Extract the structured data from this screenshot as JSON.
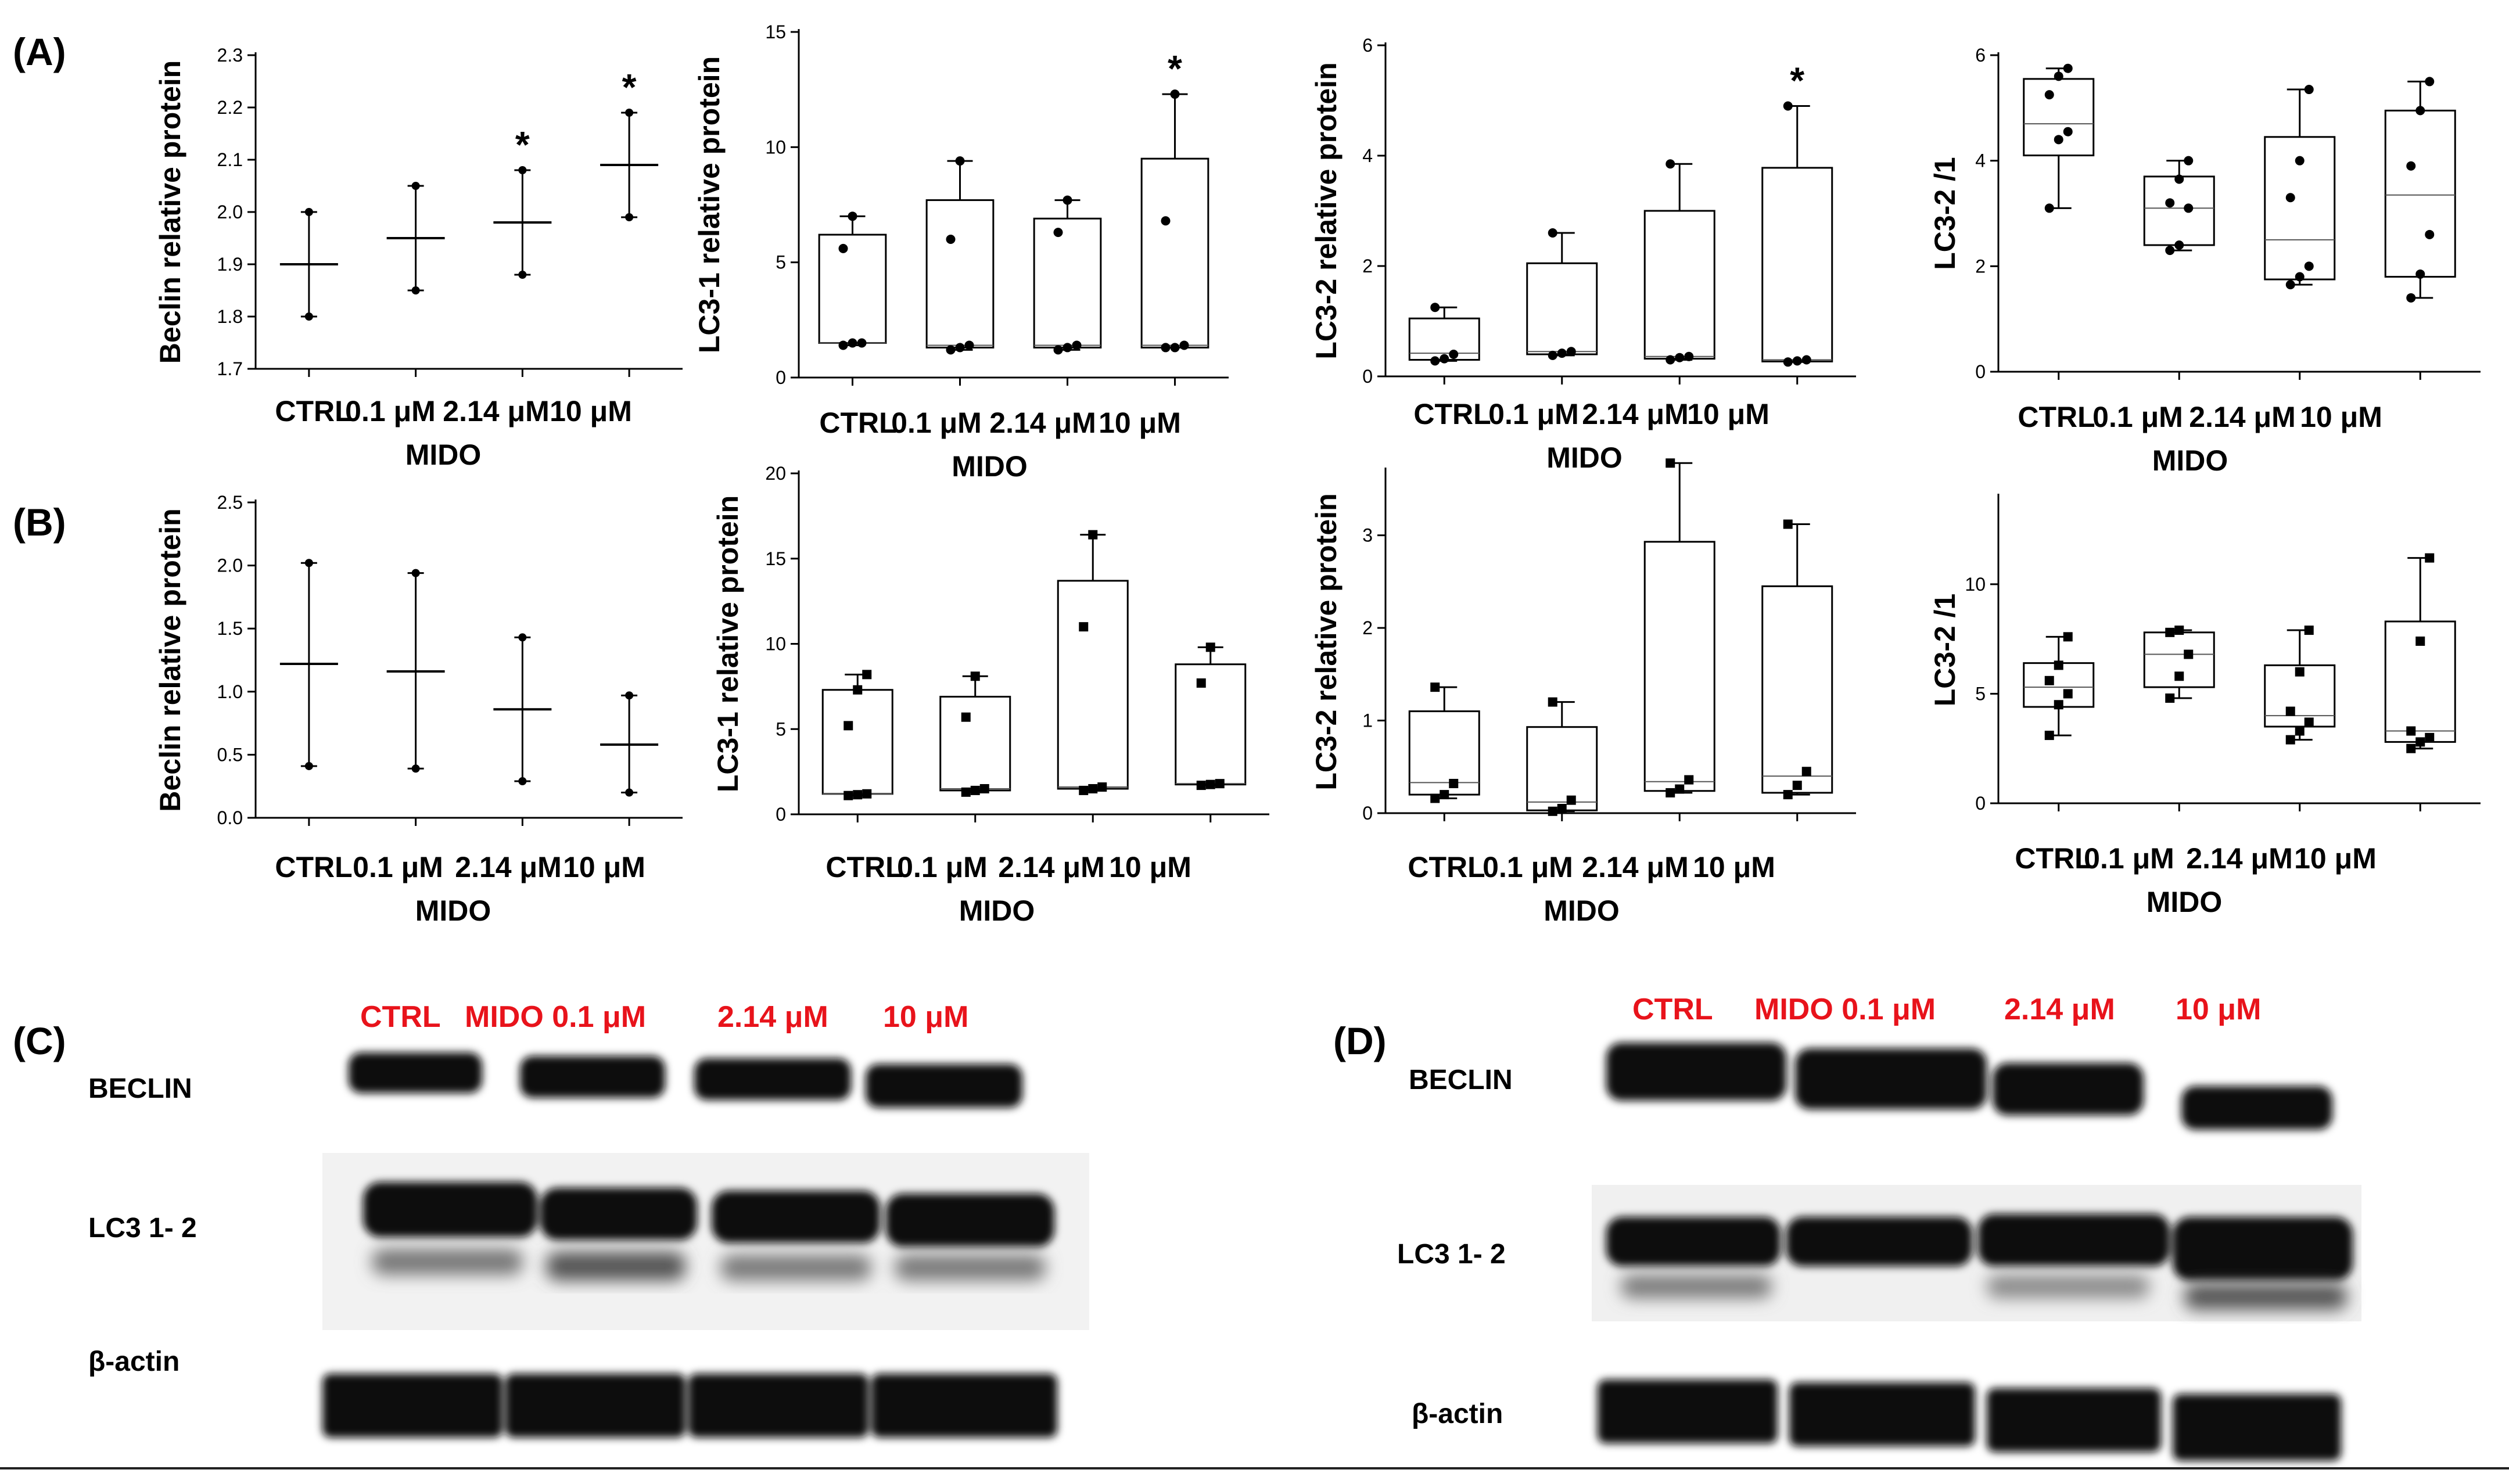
{
  "figure": {
    "footer_rule_color": "#222222",
    "blot_lane_color": "#e8131b",
    "band_color": "#0a0a0a"
  },
  "chart_data": [
    {
      "id": "A1",
      "panel_label": "(A)",
      "type": "errorbar",
      "ylabel": "Beclin relative protein",
      "xlabel": "MIDO",
      "categories": [
        "CTRL",
        "0.1 μM",
        "2.14 μM",
        "10 μM"
      ],
      "ylim": [
        1.7,
        2.3
      ],
      "yticks": [
        1.7,
        1.8,
        1.9,
        2.0,
        2.1,
        2.2,
        2.3
      ],
      "ytick_labels": [
        "1.7",
        "1.8",
        "1.9",
        "2.0",
        "2.1",
        "2.2",
        "2.3"
      ],
      "series": [
        {
          "mean": 1.9,
          "low": 1.8,
          "high": 2.0
        },
        {
          "mean": 1.95,
          "low": 1.85,
          "high": 2.05
        },
        {
          "mean": 1.98,
          "low": 1.88,
          "high": 2.08
        },
        {
          "mean": 2.09,
          "low": 1.99,
          "high": 2.19
        }
      ],
      "significance": [
        "",
        "",
        "*",
        "*"
      ]
    },
    {
      "id": "A2",
      "type": "box",
      "ylabel": "LC3-1 relative protein",
      "xlabel": "MIDO",
      "categories": [
        "CTRL",
        "0.1 μM",
        "2.14 μM",
        "10 μM"
      ],
      "ylim": [
        0,
        15
      ],
      "yticks": [
        0,
        5,
        10,
        15
      ],
      "ytick_labels": [
        "0",
        "5",
        "10",
        "15"
      ],
      "marker": "circle",
      "boxes": [
        {
          "min": 1.4,
          "q1": 1.5,
          "median": 1.5,
          "q3": 6.2,
          "max": 7.0,
          "points": [
            1.4,
            1.5,
            1.5,
            5.6,
            7.0
          ]
        },
        {
          "min": 1.2,
          "q1": 1.3,
          "median": 1.4,
          "q3": 7.7,
          "max": 9.4,
          "points": [
            1.2,
            1.3,
            1.4,
            6.0,
            9.4
          ]
        },
        {
          "min": 1.2,
          "q1": 1.3,
          "median": 1.4,
          "q3": 6.9,
          "max": 7.7,
          "points": [
            1.2,
            1.3,
            1.4,
            6.3,
            7.7
          ]
        },
        {
          "min": 1.3,
          "q1": 1.3,
          "median": 1.4,
          "q3": 9.5,
          "max": 12.3,
          "points": [
            1.3,
            1.3,
            1.4,
            6.8,
            12.3
          ]
        }
      ],
      "significance": [
        "",
        "",
        "",
        "*"
      ]
    },
    {
      "id": "A3",
      "type": "box",
      "ylabel": "LC3-2 relative protein",
      "xlabel": "MIDO",
      "categories": [
        "CTRL",
        "0.1 μM",
        "2.14 μM",
        "10 μM"
      ],
      "ylim": [
        0,
        6
      ],
      "yticks": [
        0,
        2,
        4,
        6
      ],
      "ytick_labels": [
        "0",
        "2",
        "4",
        "6"
      ],
      "marker": "circle",
      "boxes": [
        {
          "min": 0.28,
          "q1": 0.3,
          "median": 0.42,
          "q3": 1.05,
          "max": 1.25,
          "points": [
            0.28,
            0.32,
            0.4,
            1.25
          ]
        },
        {
          "min": 0.38,
          "q1": 0.4,
          "median": 0.45,
          "q3": 2.05,
          "max": 2.6,
          "points": [
            0.38,
            0.42,
            0.45,
            2.6
          ]
        },
        {
          "min": 0.3,
          "q1": 0.32,
          "median": 0.36,
          "q3": 3.0,
          "max": 3.85,
          "points": [
            0.3,
            0.34,
            0.36,
            3.85
          ]
        },
        {
          "min": 0.26,
          "q1": 0.27,
          "median": 0.3,
          "q3": 3.78,
          "max": 4.9,
          "points": [
            0.26,
            0.28,
            0.3,
            4.9
          ]
        }
      ],
      "significance": [
        "",
        "",
        "",
        "*"
      ]
    },
    {
      "id": "A4",
      "type": "box",
      "ylabel": "LC3-2 /1",
      "xlabel": "MIDO",
      "categories": [
        "CTRL",
        "0.1 μM",
        "2.14 μM",
        "10 μM"
      ],
      "ylim": [
        0,
        6
      ],
      "yticks": [
        0,
        2,
        4,
        6
      ],
      "ytick_labels": [
        "0",
        "2",
        "4",
        "6"
      ],
      "marker": "circle",
      "boxes": [
        {
          "min": 3.1,
          "q1": 4.1,
          "median": 4.7,
          "q3": 5.55,
          "max": 5.75,
          "points": [
            3.1,
            4.4,
            4.55,
            5.25,
            5.6,
            5.75
          ]
        },
        {
          "min": 2.3,
          "q1": 2.4,
          "median": 3.1,
          "q3": 3.7,
          "max": 4.0,
          "points": [
            2.3,
            2.4,
            3.1,
            3.2,
            3.65,
            4.0
          ]
        },
        {
          "min": 1.65,
          "q1": 1.75,
          "median": 2.5,
          "q3": 4.45,
          "max": 5.35,
          "points": [
            1.65,
            1.8,
            2.0,
            3.3,
            4.0,
            5.35
          ]
        },
        {
          "min": 1.4,
          "q1": 1.8,
          "median": 3.35,
          "q3": 4.95,
          "max": 5.5,
          "points": [
            1.4,
            1.85,
            2.6,
            3.9,
            4.95,
            5.5
          ]
        }
      ],
      "significance": [
        "",
        "",
        "",
        ""
      ]
    },
    {
      "id": "B1",
      "panel_label": "(B)",
      "type": "errorbar",
      "ylabel": "Beclin relative protein",
      "xlabel": "MIDO",
      "categories": [
        "CTRL",
        "0.1 μM",
        "2.14 μM",
        "10 μM"
      ],
      "ylim": [
        0,
        2.5
      ],
      "yticks": [
        0,
        0.5,
        1.0,
        1.5,
        2.0,
        2.5
      ],
      "ytick_labels": [
        "0.0",
        "0.5",
        "1.0",
        "1.5",
        "2.0",
        "2.5"
      ],
      "series": [
        {
          "mean": 1.22,
          "low": 0.41,
          "high": 2.02
        },
        {
          "mean": 1.16,
          "low": 0.39,
          "high": 1.94
        },
        {
          "mean": 0.86,
          "low": 0.29,
          "high": 1.43
        },
        {
          "mean": 0.58,
          "low": 0.2,
          "high": 0.97
        }
      ],
      "significance": [
        "",
        "",
        "",
        ""
      ]
    },
    {
      "id": "B2",
      "type": "box",
      "ylabel": "LC3-1 relative protein",
      "xlabel": "MIDO",
      "categories": [
        "CTRL",
        "0.1 μM",
        "2.14 μM",
        "10 μM"
      ],
      "ylim": [
        0,
        20
      ],
      "yticks": [
        0,
        5,
        10,
        15,
        20
      ],
      "ytick_labels": [
        "0",
        "5",
        "10",
        "15",
        "20"
      ],
      "marker": "square",
      "boxes": [
        {
          "min": 1.1,
          "q1": 1.2,
          "median": 1.2,
          "q3": 7.3,
          "max": 8.2,
          "points": [
            1.1,
            1.15,
            1.2,
            5.2,
            7.3,
            8.2
          ]
        },
        {
          "min": 1.3,
          "q1": 1.4,
          "median": 1.5,
          "q3": 6.9,
          "max": 8.1,
          "points": [
            1.3,
            1.4,
            1.5,
            5.7,
            8.1
          ]
        },
        {
          "min": 1.4,
          "q1": 1.5,
          "median": 1.6,
          "q3": 13.7,
          "max": 16.4,
          "points": [
            1.4,
            1.5,
            1.6,
            11.0,
            16.4
          ]
        },
        {
          "min": 1.7,
          "q1": 1.75,
          "median": 1.8,
          "q3": 8.8,
          "max": 9.8,
          "points": [
            1.7,
            1.75,
            1.8,
            7.7,
            9.8
          ]
        }
      ],
      "significance": [
        "",
        "",
        "",
        ""
      ]
    },
    {
      "id": "B3",
      "type": "box",
      "ylabel": "LC3-2 relative protein",
      "xlabel": "MIDO",
      "categories": [
        "CTRL",
        "0.1 μM",
        "2.14 μM",
        "10 μM"
      ],
      "ylim": [
        0,
        3.7
      ],
      "yticks": [
        0,
        1,
        2,
        3
      ],
      "ytick_labels": [
        "0",
        "1",
        "2",
        "3"
      ],
      "marker": "square",
      "boxes": [
        {
          "min": 0.16,
          "q1": 0.2,
          "median": 0.33,
          "q3": 1.1,
          "max": 1.36,
          "points": [
            0.16,
            0.2,
            0.32,
            1.36
          ]
        },
        {
          "min": 0.02,
          "q1": 0.03,
          "median": 0.12,
          "q3": 0.93,
          "max": 1.2,
          "points": [
            0.02,
            0.05,
            0.14,
            1.2
          ]
        },
        {
          "min": 0.22,
          "q1": 0.24,
          "median": 0.34,
          "q3": 2.93,
          "max": 3.78,
          "points": [
            0.22,
            0.26,
            0.36,
            3.78
          ]
        },
        {
          "min": 0.2,
          "q1": 0.22,
          "median": 0.4,
          "q3": 2.45,
          "max": 3.12,
          "points": [
            0.2,
            0.3,
            0.45,
            3.12
          ]
        }
      ],
      "significance": [
        "",
        "",
        "",
        ""
      ]
    },
    {
      "id": "B4",
      "type": "box",
      "ylabel": "LC3-2 /1",
      "xlabel": "MIDO",
      "categories": [
        "CTRL",
        "0.1 μM",
        "2.14 μM",
        "10 μM"
      ],
      "ylim": [
        0,
        14
      ],
      "yticks": [
        0,
        5,
        10
      ],
      "ytick_labels": [
        "0",
        "5",
        "10"
      ],
      "marker": "square",
      "boxes": [
        {
          "min": 3.1,
          "q1": 4.4,
          "median": 5.3,
          "q3": 6.4,
          "max": 7.6,
          "points": [
            3.1,
            4.5,
            5.0,
            5.6,
            6.3,
            7.6
          ]
        },
        {
          "min": 4.8,
          "q1": 5.3,
          "median": 6.8,
          "q3": 7.8,
          "max": 7.9,
          "points": [
            4.8,
            5.8,
            6.8,
            7.8,
            7.9
          ]
        },
        {
          "min": 2.9,
          "q1": 3.5,
          "median": 4.0,
          "q3": 6.3,
          "max": 7.9,
          "points": [
            2.9,
            3.3,
            3.7,
            4.2,
            6.0,
            7.9
          ]
        },
        {
          "min": 2.5,
          "q1": 2.8,
          "median": 3.3,
          "q3": 8.3,
          "max": 11.2,
          "points": [
            2.5,
            2.8,
            3.0,
            3.3,
            7.4,
            11.2
          ]
        }
      ],
      "significance": [
        "",
        "",
        "",
        ""
      ]
    }
  ],
  "blots": [
    {
      "id": "C",
      "panel_label": "(C)",
      "lanes": [
        "CTRL",
        "MIDO 0.1 μM",
        "2.14 μM",
        "10 μM"
      ],
      "rows": [
        "BECLIN",
        "LC3 1- 2",
        "β-actin"
      ]
    },
    {
      "id": "D",
      "panel_label": "(D)",
      "lanes": [
        "CTRL",
        "MIDO 0.1 μM",
        "2.14 μM",
        "10 μM"
      ],
      "rows": [
        "BECLIN",
        "LC3 1- 2",
        "β-actin"
      ]
    }
  ]
}
